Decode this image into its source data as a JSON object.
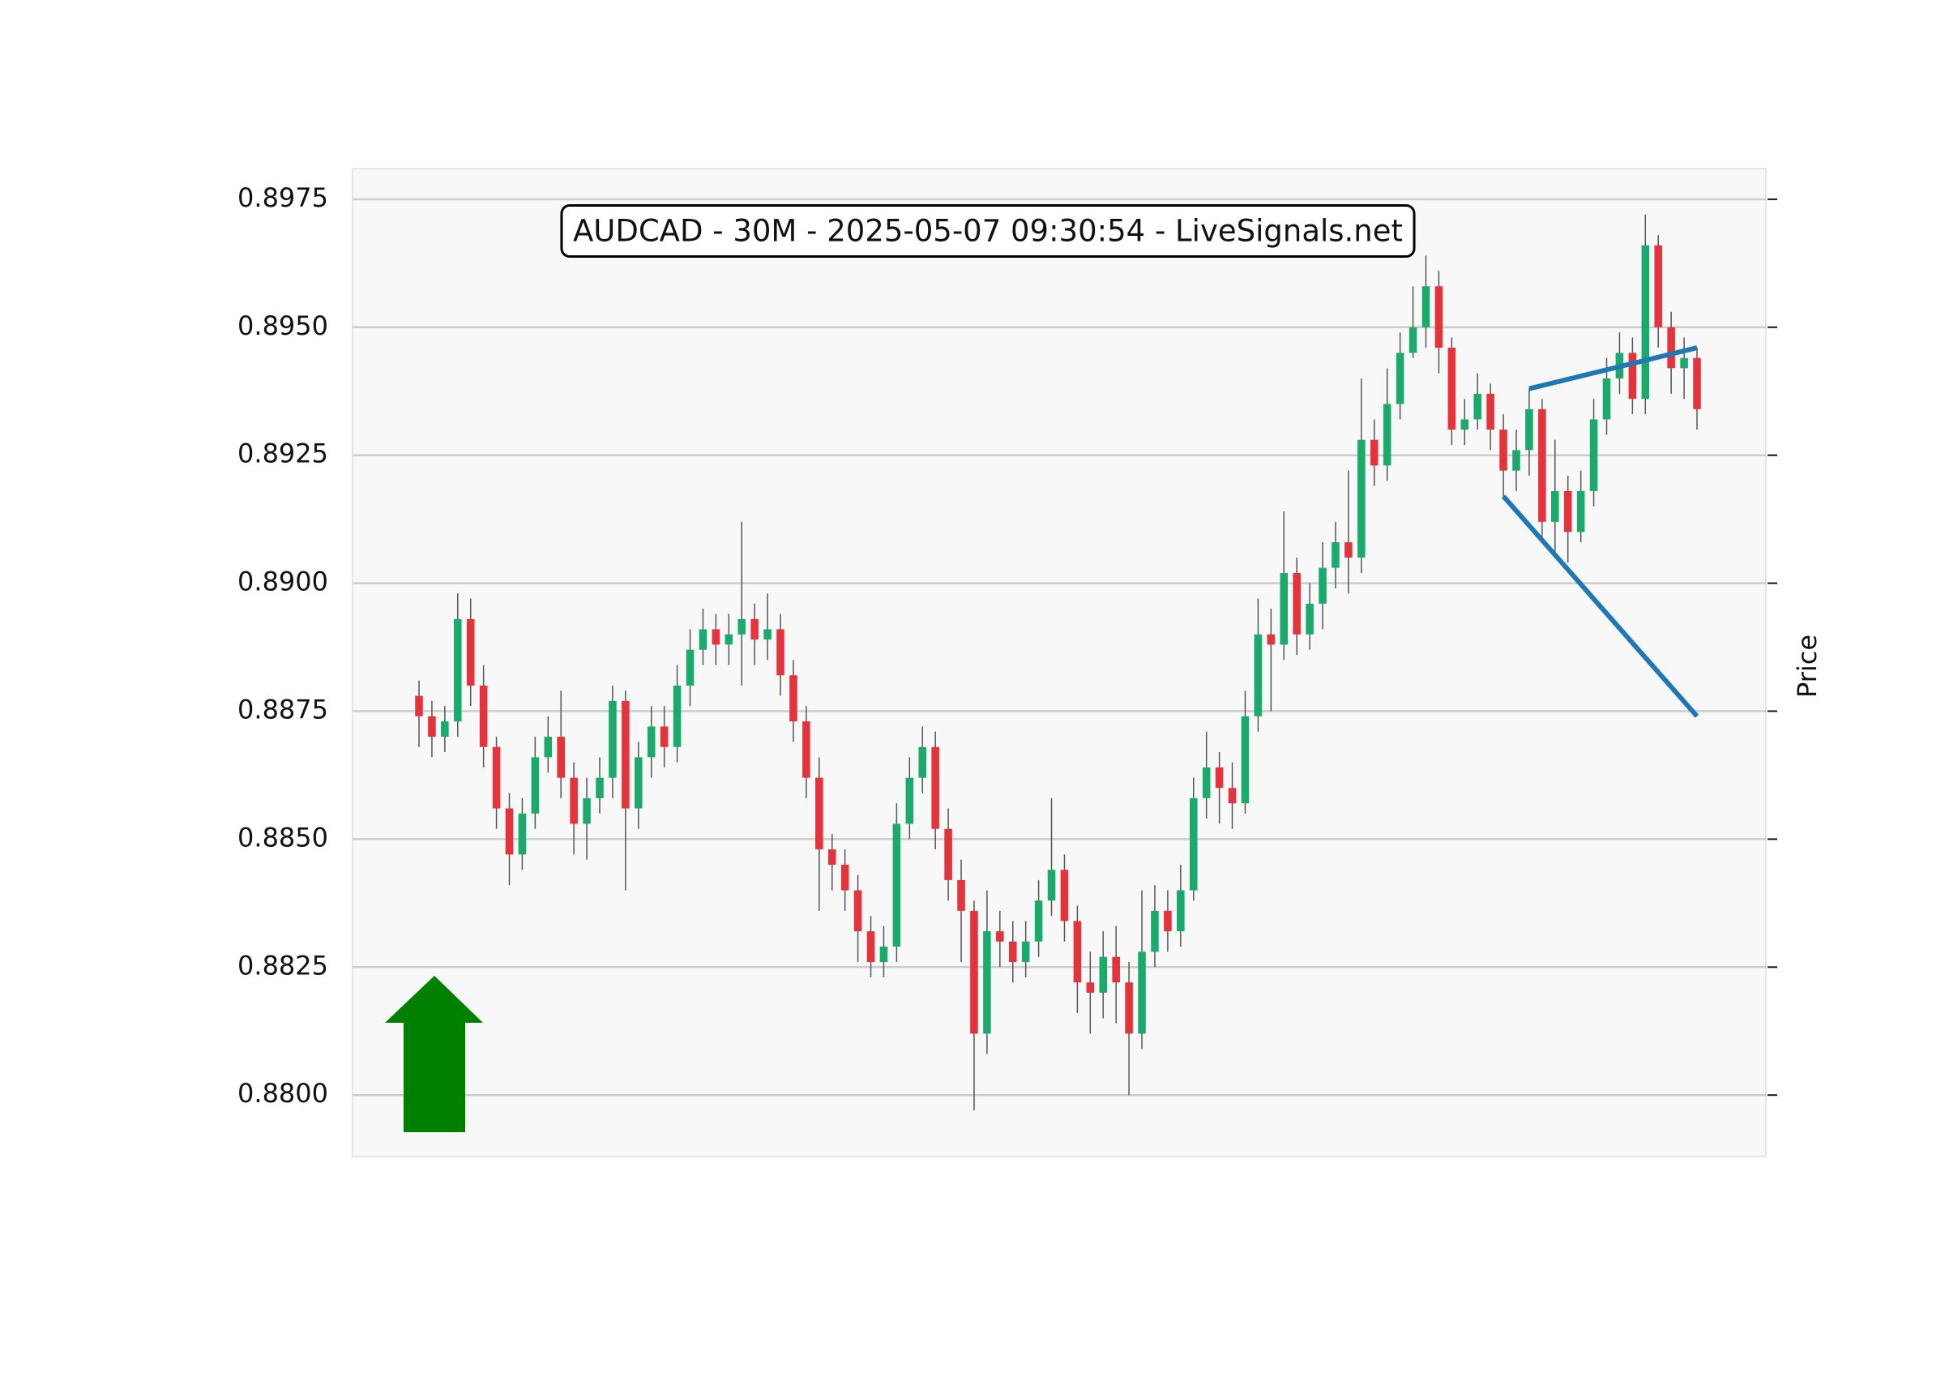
{
  "chart_data": {
    "type": "candlestick",
    "title": "AUDCAD - 30M - 2025-05-07 09:30:54 - LiveSignals.net",
    "y_label": "Price",
    "ylim": [
      0.8788,
      0.8981
    ],
    "yticks": [
      {
        "value": 0.88,
        "label": "0.8800"
      },
      {
        "value": 0.8825,
        "label": "0.8825"
      },
      {
        "value": 0.885,
        "label": "0.8850"
      },
      {
        "value": 0.8875,
        "label": "0.8875"
      },
      {
        "value": 0.89,
        "label": "0.8900"
      },
      {
        "value": 0.8925,
        "label": "0.8925"
      },
      {
        "value": 0.895,
        "label": "0.8950"
      },
      {
        "value": 0.8975,
        "label": "0.8975"
      }
    ],
    "grid": true,
    "up_color": "#1aab6c",
    "down_color": "#e5333b",
    "open": [
      0.8878,
      0.8874,
      0.887,
      0.8873,
      0.8893,
      0.888,
      0.8868,
      0.8856,
      0.8847,
      0.8855,
      0.8866,
      0.887,
      0.8862,
      0.8853,
      0.8858,
      0.8862,
      0.8877,
      0.8856,
      0.8866,
      0.8872,
      0.8868,
      0.888,
      0.8887,
      0.8891,
      0.8888,
      0.889,
      0.8893,
      0.8889,
      0.8891,
      0.8882,
      0.8873,
      0.8862,
      0.8848,
      0.8845,
      0.884,
      0.8832,
      0.8826,
      0.8829,
      0.8853,
      0.8862,
      0.8868,
      0.8852,
      0.8842,
      0.8836,
      0.8812,
      0.8832,
      0.883,
      0.8826,
      0.883,
      0.8838,
      0.8844,
      0.8834,
      0.8822,
      0.882,
      0.8827,
      0.8822,
      0.8812,
      0.8828,
      0.8836,
      0.8832,
      0.884,
      0.8858,
      0.8864,
      0.886,
      0.8857,
      0.8874,
      0.889,
      0.8888,
      0.8902,
      0.889,
      0.8896,
      0.8903,
      0.8908,
      0.8905,
      0.8928,
      0.8923,
      0.8935,
      0.8945,
      0.895,
      0.8958,
      0.8946,
      0.893,
      0.8932,
      0.8937,
      0.893,
      0.8922,
      0.8926,
      0.8934,
      0.8912,
      0.8918,
      0.891,
      0.8918,
      0.8932,
      0.894,
      0.8945,
      0.8936,
      0.8966,
      0.895,
      0.8942,
      0.8944
    ],
    "high": [
      0.8881,
      0.8877,
      0.8876,
      0.8898,
      0.8897,
      0.8884,
      0.887,
      0.8859,
      0.8858,
      0.887,
      0.8874,
      0.8879,
      0.8865,
      0.8862,
      0.8866,
      0.888,
      0.8879,
      0.8869,
      0.8876,
      0.8876,
      0.8884,
      0.8891,
      0.8895,
      0.8894,
      0.8894,
      0.8912,
      0.8896,
      0.8898,
      0.8894,
      0.8885,
      0.8876,
      0.8866,
      0.8851,
      0.8848,
      0.8843,
      0.8835,
      0.8833,
      0.8857,
      0.8866,
      0.8872,
      0.8871,
      0.8856,
      0.8846,
      0.8838,
      0.884,
      0.8836,
      0.8834,
      0.8834,
      0.8842,
      0.8858,
      0.8847,
      0.8837,
      0.8828,
      0.8832,
      0.8833,
      0.8826,
      0.884,
      0.8841,
      0.884,
      0.8845,
      0.8862,
      0.8871,
      0.8867,
      0.8865,
      0.8879,
      0.8897,
      0.8895,
      0.8914,
      0.8905,
      0.89,
      0.8908,
      0.8912,
      0.8922,
      0.894,
      0.8932,
      0.8942,
      0.8949,
      0.8958,
      0.8964,
      0.8961,
      0.8948,
      0.8936,
      0.8941,
      0.8939,
      0.8933,
      0.893,
      0.8938,
      0.8936,
      0.8928,
      0.8921,
      0.8922,
      0.8936,
      0.8944,
      0.8949,
      0.8948,
      0.8972,
      0.8968,
      0.8953,
      0.8948,
      0.8946
    ],
    "low": [
      0.8868,
      0.8866,
      0.8867,
      0.887,
      0.8876,
      0.8864,
      0.8852,
      0.8841,
      0.8844,
      0.8852,
      0.8863,
      0.8858,
      0.8847,
      0.8846,
      0.8855,
      0.8858,
      0.884,
      0.8852,
      0.8862,
      0.8864,
      0.8865,
      0.8876,
      0.8884,
      0.8884,
      0.8884,
      0.888,
      0.8884,
      0.8885,
      0.8878,
      0.8869,
      0.8858,
      0.8836,
      0.884,
      0.8836,
      0.8826,
      0.8823,
      0.8823,
      0.8826,
      0.885,
      0.8859,
      0.8848,
      0.8838,
      0.8826,
      0.8797,
      0.8808,
      0.8825,
      0.8822,
      0.8823,
      0.8827,
      0.8835,
      0.883,
      0.8816,
      0.8812,
      0.8815,
      0.8814,
      0.88,
      0.8809,
      0.8825,
      0.8828,
      0.8829,
      0.8838,
      0.8854,
      0.8853,
      0.8852,
      0.8855,
      0.8871,
      0.8875,
      0.8885,
      0.8886,
      0.8887,
      0.8891,
      0.8899,
      0.8898,
      0.8902,
      0.8919,
      0.892,
      0.8932,
      0.8944,
      0.8946,
      0.8941,
      0.8927,
      0.8927,
      0.893,
      0.8926,
      0.8917,
      0.8918,
      0.8921,
      0.8908,
      0.8905,
      0.8904,
      0.8908,
      0.8915,
      0.8929,
      0.8937,
      0.8933,
      0.8933,
      0.8946,
      0.8937,
      0.8936,
      0.893
    ],
    "close": [
      0.8874,
      0.887,
      0.8873,
      0.8893,
      0.888,
      0.8868,
      0.8856,
      0.8847,
      0.8855,
      0.8866,
      0.887,
      0.8862,
      0.8853,
      0.8858,
      0.8862,
      0.8877,
      0.8856,
      0.8866,
      0.8872,
      0.8868,
      0.888,
      0.8887,
      0.8891,
      0.8888,
      0.889,
      0.8893,
      0.8889,
      0.8891,
      0.8882,
      0.8873,
      0.8862,
      0.8848,
      0.8845,
      0.884,
      0.8832,
      0.8826,
      0.8829,
      0.8853,
      0.8862,
      0.8868,
      0.8852,
      0.8842,
      0.8836,
      0.8812,
      0.8832,
      0.883,
      0.8826,
      0.883,
      0.8838,
      0.8844,
      0.8834,
      0.8822,
      0.882,
      0.8827,
      0.8822,
      0.8812,
      0.8828,
      0.8836,
      0.8832,
      0.884,
      0.8858,
      0.8864,
      0.886,
      0.8857,
      0.8874,
      0.889,
      0.8888,
      0.8902,
      0.889,
      0.8896,
      0.8903,
      0.8908,
      0.8905,
      0.8928,
      0.8923,
      0.8935,
      0.8945,
      0.895,
      0.8958,
      0.8946,
      0.893,
      0.8932,
      0.8937,
      0.893,
      0.8922,
      0.8926,
      0.8934,
      0.8912,
      0.8918,
      0.891,
      0.8918,
      0.8932,
      0.894,
      0.8945,
      0.8936,
      0.8966,
      0.895,
      0.8942,
      0.8944,
      0.8934
    ],
    "lines": [
      {
        "color": "#1f77b4",
        "x": [
          86,
          99
        ],
        "y": [
          0.8938,
          0.8946
        ]
      },
      {
        "color": "#1f77b4",
        "x": [
          84,
          99
        ],
        "y": [
          0.8917,
          0.8874
        ]
      }
    ]
  }
}
